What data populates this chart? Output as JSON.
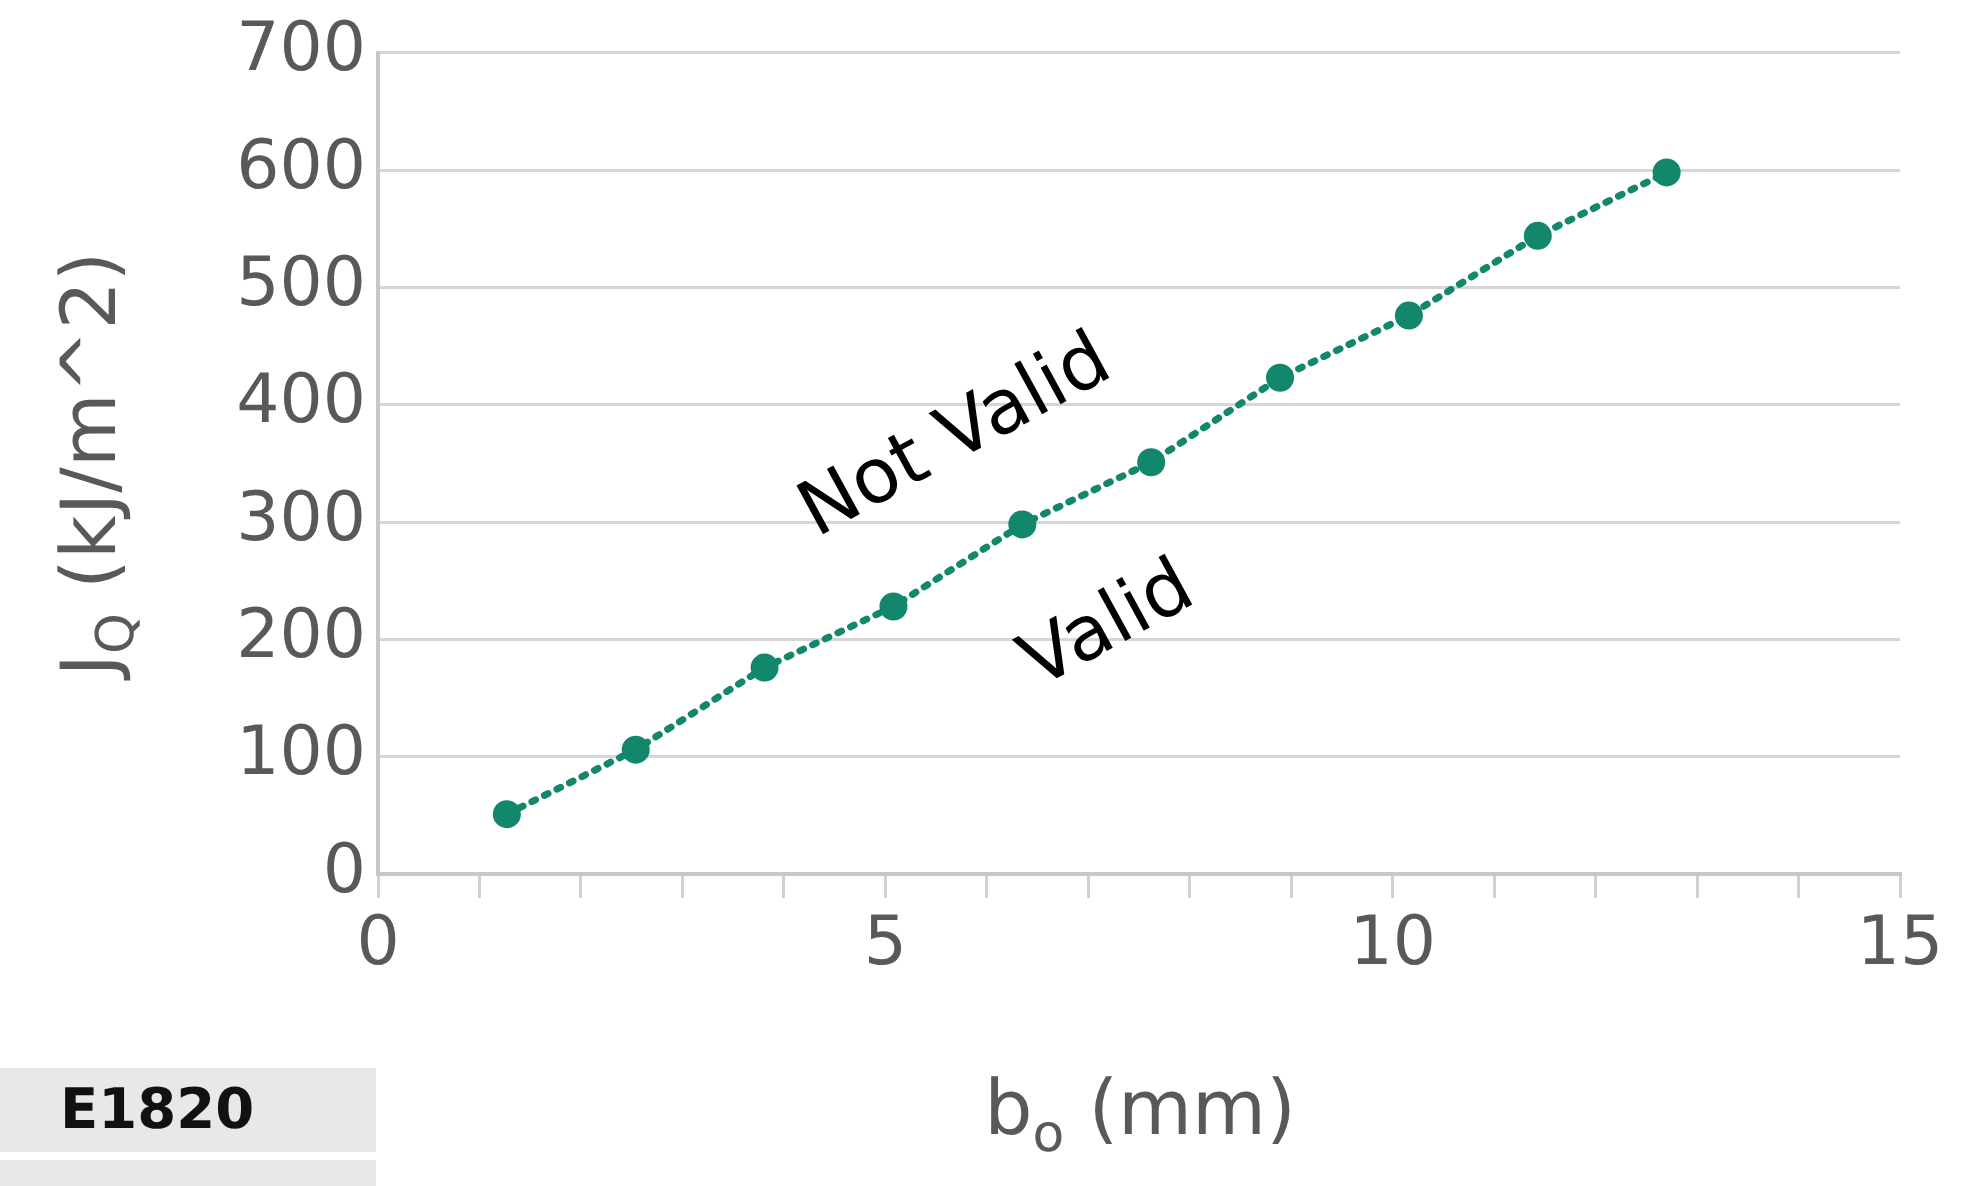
{
  "chart_data": {
    "type": "line",
    "xlabel": "b$_{o}$ (mm)",
    "ylabel": "J$_{Q}$ (kJ/m^2)",
    "x": [
      1.27,
      2.54,
      3.81,
      5.08,
      6.35,
      7.62,
      8.89,
      10.16,
      11.43,
      12.7
    ],
    "series": [
      {
        "color": "#12876b",
        "values": [
          51,
          106,
          176,
          228,
          298,
          351,
          423,
          476,
          544,
          598
        ]
      }
    ],
    "xlim": [
      0,
      15
    ],
    "xticks": [
      0,
      {
        "value": 1,
        "label": null
      },
      {
        "value": 2,
        "label": null
      },
      {
        "value": 3,
        "label": null
      },
      {
        "value": 4,
        "label": null
      },
      5,
      {
        "value": 6,
        "label": null
      },
      {
        "value": 7,
        "label": null
      },
      {
        "value": 8,
        "label": null
      },
      {
        "value": 9,
        "label": null
      },
      10,
      {
        "value": 11,
        "label": null
      },
      {
        "value": 12,
        "label": null
      },
      {
        "value": 13,
        "label": null
      },
      {
        "value": 14,
        "label": null
      },
      15
    ],
    "ylim": [
      0,
      700
    ],
    "yticks": [
      0,
      100,
      200,
      300,
      400,
      500,
      600,
      700
    ],
    "grid": "y",
    "legend": false,
    "marker": "circle",
    "line_style": "dotted",
    "annotations": [
      "Not Valid",
      "Valid",
      "E1820"
    ]
  }
}
